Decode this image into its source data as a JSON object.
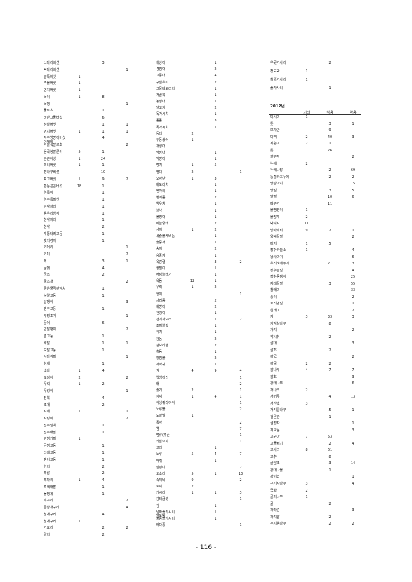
{
  "page_number": "- 116 -",
  "column1": [
    [
      "느타리버섯",
      "",
      "3",
      ""
    ],
    [
      "덕다리버섯",
      "",
      "",
      "1"
    ],
    [
      "말뚝버섯",
      "1",
      "",
      ""
    ],
    [
      "먹물버섯",
      "1",
      "",
      ""
    ],
    [
      "먼지버섯",
      "1",
      "",
      ""
    ],
    [
      "목이",
      "1",
      "8",
      ""
    ],
    [
      "목벵",
      "",
      "",
      "1"
    ],
    [
      "물로초",
      "",
      "1",
      ""
    ],
    [
      "비단그물버섯",
      "",
      "6",
      ""
    ],
    [
      "상황버섯",
      "",
      "1",
      "1"
    ],
    [
      "영지버섯",
      "1",
      "1",
      "1"
    ],
    [
      "자주방망이버섯아재비",
      "",
      "4",
      ""
    ],
    [
      "겨울색깔로초",
      "",
      "",
      "2"
    ],
    [
      "용곡봉잘콘이",
      "5",
      "1",
      ""
    ],
    [
      "곤곤어성",
      "1",
      "24",
      ""
    ],
    [
      "퍼리버섯",
      "1",
      "1",
      ""
    ],
    [
      "팽나무버섯",
      "",
      "10",
      ""
    ],
    [
      "표고버섯",
      "1",
      "9",
      "2"
    ],
    [
      "황등곤곤버섯",
      "18",
      "1",
      ""
    ],
    [
      "흰목이",
      "",
      "1",
      ""
    ],
    [
      "흰주름버섯",
      "",
      "1",
      ""
    ],
    [
      "남작파래",
      "",
      "1",
      ""
    ],
    [
      "용우리청각",
      "",
      "1",
      ""
    ],
    [
      "청각파래",
      "",
      "1",
      ""
    ],
    [
      "청각",
      "",
      "2",
      ""
    ],
    [
      "개똥타리고등",
      "",
      "1",
      ""
    ],
    [
      "갯지렁이",
      "",
      "1",
      ""
    ],
    [
      "거머리",
      "",
      "",
      "1"
    ],
    [
      "거미",
      "",
      "",
      "2"
    ],
    [
      "게",
      "",
      "3",
      "1"
    ],
    [
      "굴뱃",
      "",
      "4",
      ""
    ],
    [
      "군소",
      "",
      "2",
      ""
    ],
    [
      "굴조개",
      "",
      "",
      "2"
    ],
    [
      "굵은줄격판담치",
      "",
      "1",
      ""
    ],
    [
      "눈알고둥",
      "",
      "1",
      ""
    ],
    [
      "달팽이",
      "",
      "",
      "3"
    ],
    [
      "맹주고둥",
      "",
      "1",
      ""
    ],
    [
      "무명조개",
      "",
      "",
      "1"
    ],
    [
      "문어",
      "",
      "6",
      ""
    ],
    [
      "민달팽이",
      "",
      "",
      "2"
    ],
    [
      "범고둥",
      "",
      "1",
      ""
    ],
    [
      "배말",
      "",
      "1",
      "1"
    ],
    [
      "보말고둥",
      "",
      "1",
      ""
    ],
    [
      "사마귀미",
      "",
      "",
      "1"
    ],
    [
      "섬게",
      "",
      "1",
      ""
    ],
    [
      "소라",
      "1",
      "4",
      ""
    ],
    [
      "오징어",
      "2",
      "",
      "2"
    ],
    [
      "우럭",
      "1",
      "2",
      ""
    ],
    [
      "우렁이",
      "",
      "",
      "1"
    ],
    [
      "전복",
      "",
      "4",
      ""
    ],
    [
      "조개",
      "",
      "2",
      ""
    ],
    [
      "지네",
      "1",
      "",
      "1"
    ],
    [
      "지렁이",
      "",
      "",
      "2"
    ],
    [
      "진주담치",
      "",
      "1",
      ""
    ],
    [
      "진주배말",
      "",
      "1",
      ""
    ],
    [
      "김범가미",
      "1",
      "",
      ""
    ],
    [
      "큰범고둥",
      "",
      "1",
      ""
    ],
    [
      "타래고둥",
      "",
      "1",
      ""
    ],
    [
      "팽이고둥",
      "",
      "1",
      ""
    ],
    [
      "한치",
      "",
      "2",
      ""
    ],
    [
      "해삼",
      "",
      "2",
      ""
    ],
    [
      "해파리",
      "1",
      "4",
      ""
    ],
    [
      "흑색배말",
      "",
      "1",
      ""
    ],
    [
      "돌멩게",
      "",
      "1",
      ""
    ],
    [
      "개구리",
      "",
      "",
      "2"
    ],
    [
      "금창개구리",
      "",
      "",
      "4"
    ],
    [
      "청개구리",
      "",
      "4",
      ""
    ],
    [
      "청개구리",
      "1",
      "",
      ""
    ],
    [
      "가요리",
      "",
      "2",
      "2"
    ],
    [
      "갈치",
      "",
      "2",
      ""
    ]
  ],
  "column2": [
    [
      "개상어",
      "",
      "1",
      ""
    ],
    [
      "경점어",
      "",
      "2",
      ""
    ],
    [
      "고등어",
      "",
      "4",
      ""
    ],
    [
      "구실우럭",
      "",
      "2",
      ""
    ],
    [
      "그물베도라치",
      "",
      "1",
      ""
    ],
    [
      "꺼끌복",
      "",
      "1",
      ""
    ],
    [
      "농성어",
      "",
      "1",
      ""
    ],
    [
      "달고기",
      "",
      "2",
      ""
    ],
    [
      "독가시치",
      "",
      "1",
      ""
    ],
    [
      "돔돔",
      "",
      "3",
      ""
    ],
    [
      "독가시치",
      "",
      "1",
      ""
    ],
    [
      "동대",
      "2",
      "",
      ""
    ],
    [
      "두동상어",
      "1",
      "",
      ""
    ],
    [
      "개성어",
      "",
      "",
      ""
    ],
    [
      "막장어",
      "",
      "1",
      ""
    ],
    [
      "막장어",
      "",
      "1",
      ""
    ],
    [
      "멍치",
      "1",
      "5",
      ""
    ],
    [
      "멸대",
      "2",
      "",
      "1"
    ],
    [
      "오자반",
      "1",
      "3",
      ""
    ],
    [
      "배도라치",
      "",
      "1",
      ""
    ],
    [
      "벤자리",
      "",
      "1",
      ""
    ],
    [
      "벵에돔",
      "",
      "2",
      ""
    ],
    [
      "뱅우치",
      "",
      "1",
      ""
    ],
    [
      "볼낙",
      "",
      "1",
      ""
    ],
    [
      "볼정어",
      "",
      "1",
      ""
    ],
    [
      "비늘양태",
      "",
      "2",
      ""
    ],
    [
      "삼어",
      "1",
      "2",
      ""
    ],
    [
      "세줄볼게비돔",
      "",
      "1",
      ""
    ],
    [
      "솔중개",
      "",
      "1",
      ""
    ],
    [
      "숭어",
      "",
      "2",
      ""
    ],
    [
      "용줄게",
      "",
      "1",
      ""
    ],
    [
      "옥감렴",
      "",
      "3",
      "2"
    ],
    [
      "쌍뱀이",
      "",
      "1",
      ""
    ],
    [
      "어렝놀래기",
      "",
      "1",
      ""
    ],
    [
      "옥돔",
      "12",
      "1",
      ""
    ],
    [
      "우럭",
      "1",
      "2",
      ""
    ],
    [
      "엉어",
      "",
      "",
      "1"
    ],
    [
      "자리돔",
      "",
      "2",
      ""
    ],
    [
      "재방어",
      "",
      "2",
      ""
    ],
    [
      "전갱이",
      "",
      "1",
      ""
    ],
    [
      "전기가오리",
      "",
      "1",
      "2"
    ],
    [
      "조피볼락",
      "",
      "1",
      ""
    ],
    [
      "쥐치",
      "",
      "1",
      ""
    ],
    [
      "참돔",
      "",
      "2",
      ""
    ],
    [
      "참보리뱅",
      "",
      "2",
      ""
    ],
    [
      "흑돔",
      "",
      "1",
      ""
    ],
    [
      "황점볼",
      "",
      "2",
      ""
    ],
    [
      "까마귀",
      "",
      "1",
      ""
    ],
    [
      "꿩",
      "4",
      "9",
      "4"
    ],
    [
      "붱쌩이리",
      "",
      "",
      "1"
    ],
    [
      "배",
      "",
      "",
      "2"
    ],
    [
      "솔개",
      "2",
      "",
      "1"
    ],
    [
      "잠새",
      "1",
      "4",
      "1"
    ],
    [
      "쥐생쥐라이쥐",
      "",
      "",
      "1"
    ],
    [
      "노루뿔",
      "",
      "",
      "2"
    ],
    [
      "도마뱀",
      "1",
      "",
      ""
    ],
    [
      "독사",
      "",
      "",
      "2"
    ],
    [
      "뱀",
      "",
      "",
      "7"
    ],
    [
      "뱀류(추준 ",
      "",
      "",
      "1"
    ],
    [
      "쇠살모사",
      "",
      "",
      "1"
    ],
    [
      "고래",
      "",
      "1",
      ""
    ],
    [
      "노루",
      "5",
      "4",
      "7"
    ],
    [
      "박쥐",
      "",
      "1",
      ""
    ],
    [
      "살쾡이",
      "",
      "",
      "2"
    ],
    [
      "오소리",
      "5",
      "1",
      "13"
    ],
    [
      "족제비",
      "9",
      "",
      "2"
    ],
    [
      "토끼",
      "2",
      "",
      ""
    ],
    [
      "가시리",
      "1",
      "1",
      "3"
    ],
    [
      "감태금붓",
      "",
      "",
      "1"
    ],
    [
      "김",
      "",
      "1",
      ""
    ],
    [
      "남작풀가시리,  말도박",
      "",
      "1",
      ""
    ],
    [
      "불등풀가시리",
      "",
      "1",
      ""
    ],
    [
      "바다풍",
      "",
      "",
      "1"
    ]
  ],
  "column3_top": [
    [
      "우뭇가사리",
      "",
      "2",
      ""
    ],
    [
      "청도박",
      "1",
      "",
      ""
    ],
    [
      "참풀가사리",
      "1",
      "",
      ""
    ],
    [
      "풀가사리",
      "",
      "1",
      ""
    ]
  ],
  "section_2012": {
    "year": "2012년",
    "headers": [
      "기타",
      "식용",
      "약용"
    ],
    "rows": [
      [
        "다시마",
        "1",
        "",
        ""
      ],
      [
        "톳",
        "",
        "3",
        "1"
      ],
      [
        "모자반",
        "",
        "9",
        ""
      ],
      [
        "미역",
        "2",
        "40",
        "3"
      ],
      [
        "지충이",
        "2",
        "1",
        ""
      ],
      [
        "톳",
        "",
        "26",
        ""
      ],
      [
        "괄무지",
        "",
        "",
        "2"
      ],
      [
        "누에",
        "2",
        "",
        ""
      ],
      [
        "누에나방",
        "",
        "2",
        "69"
      ],
      [
        "동충하초누에",
        "",
        "2",
        "2"
      ],
      [
        "땅강아지",
        "",
        "",
        "15"
      ],
      [
        "땅벌",
        "",
        "3",
        "5"
      ],
      [
        "말벌",
        "",
        "10",
        "6"
      ],
      [
        "메뚜기",
        "",
        "11",
        ""
      ],
      [
        "물땡땡이",
        "1",
        "",
        ""
      ],
      [
        "물방개",
        "2",
        "",
        ""
      ],
      [
        "박각시",
        "11",
        "",
        ""
      ],
      [
        "방아개비",
        "9",
        "2",
        "1"
      ],
      [
        "양봉꿀벌",
        "",
        "",
        "2"
      ],
      [
        "매지",
        "1",
        "5",
        ""
      ],
      [
        "장수하늘소",
        "1",
        "",
        "4"
      ],
      [
        "왕사마귀",
        "",
        "",
        "6"
      ],
      [
        "우리벼메뚜기",
        "",
        "21",
        "3"
      ],
      [
        "장수말벌",
        "",
        "",
        "4"
      ],
      [
        "장수풍뎅이",
        "",
        "",
        "25"
      ],
      [
        "재래꿀벌",
        "",
        "3",
        "55"
      ],
      [
        "참매미",
        "",
        "",
        "33"
      ],
      [
        "풍이",
        "",
        "",
        "2"
      ],
      [
        "호리병벌",
        "",
        "",
        "1"
      ],
      [
        "흰개미",
        "",
        "",
        "2"
      ],
      [
        "게",
        "3",
        "33",
        "3"
      ],
      [
        "가막살나무",
        "",
        "8",
        ""
      ],
      [
        "가지",
        "",
        "",
        "2"
      ],
      [
        "각시취",
        "",
        "2",
        ""
      ],
      [
        "갈대",
        "",
        "",
        "3"
      ],
      [
        "갈조",
        "",
        "2",
        ""
      ],
      [
        "감국",
        "",
        "",
        "2"
      ],
      [
        "감귤",
        "2",
        "2",
        ""
      ],
      [
        "감나무",
        "4",
        "7",
        "7"
      ],
      [
        "감초",
        "",
        "",
        "3"
      ],
      [
        "강태나무",
        "",
        "",
        "6"
      ],
      [
        "개나리",
        "2",
        "",
        ""
      ],
      [
        "개머루",
        "",
        "4",
        "13"
      ],
      [
        "개산초",
        "3",
        "",
        ""
      ],
      [
        "개키릅나무",
        "",
        "5",
        "1"
      ],
      [
        "검은광",
        "",
        "1",
        ""
      ],
      [
        "결명자",
        "",
        "",
        "1"
      ],
      [
        "계요등",
        "",
        "",
        "3"
      ],
      [
        "고구마",
        "7",
        "53",
        ""
      ],
      [
        "고들빼기",
        "",
        "2",
        "4"
      ],
      [
        "고사리",
        "8",
        "61",
        ""
      ],
      [
        "고추",
        "",
        "8",
        ""
      ],
      [
        "골담초",
        "",
        "3",
        "14"
      ],
      [
        "광대나물",
        "",
        "1",
        ""
      ],
      [
        "광이밥",
        "",
        "",
        "1"
      ],
      [
        "구기자나무",
        "3",
        "",
        "4"
      ],
      [
        "국화",
        "2",
        "",
        ""
      ],
      [
        "굴피나무",
        "1",
        "",
        ""
      ],
      [
        "귤",
        "",
        "2",
        ""
      ],
      [
        "까마중",
        "",
        "",
        "3"
      ],
      [
        "까치밥",
        "",
        "2",
        ""
      ],
      [
        "꾸지뽕나무",
        "",
        "2",
        "2"
      ]
    ]
  }
}
